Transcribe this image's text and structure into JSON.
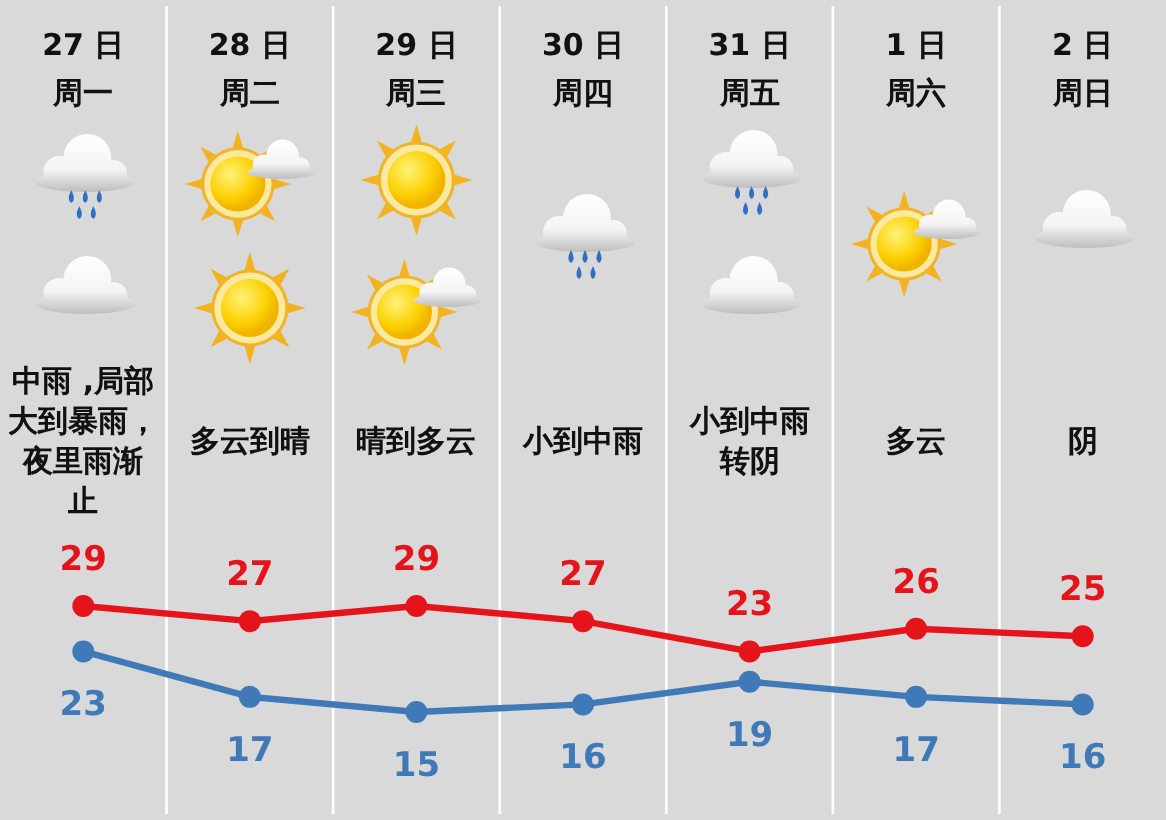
{
  "chart_data": {
    "type": "line",
    "categories": [
      "27 日",
      "28 日",
      "29 日",
      "30 日",
      "31 日",
      "1 日",
      "2 日"
    ],
    "series": [
      {
        "color": "#e5141b",
        "values": [
          29,
          27,
          29,
          27,
          23,
          26,
          25
        ]
      },
      {
        "color": "#3f79b8",
        "values": [
          23,
          17,
          15,
          16,
          19,
          17,
          16
        ]
      }
    ],
    "data_labels": true,
    "marker": "circle",
    "grid": "x",
    "annotations": [
      "周一",
      "周二",
      "周三",
      "周四",
      "周五",
      "周六",
      "周日",
      "中雨 ,局部大到暴雨，夜里雨渐止",
      "多云到晴",
      "晴到多云",
      "小到中雨",
      "小到中雨转阴",
      "多云",
      "阴"
    ]
  }
}
